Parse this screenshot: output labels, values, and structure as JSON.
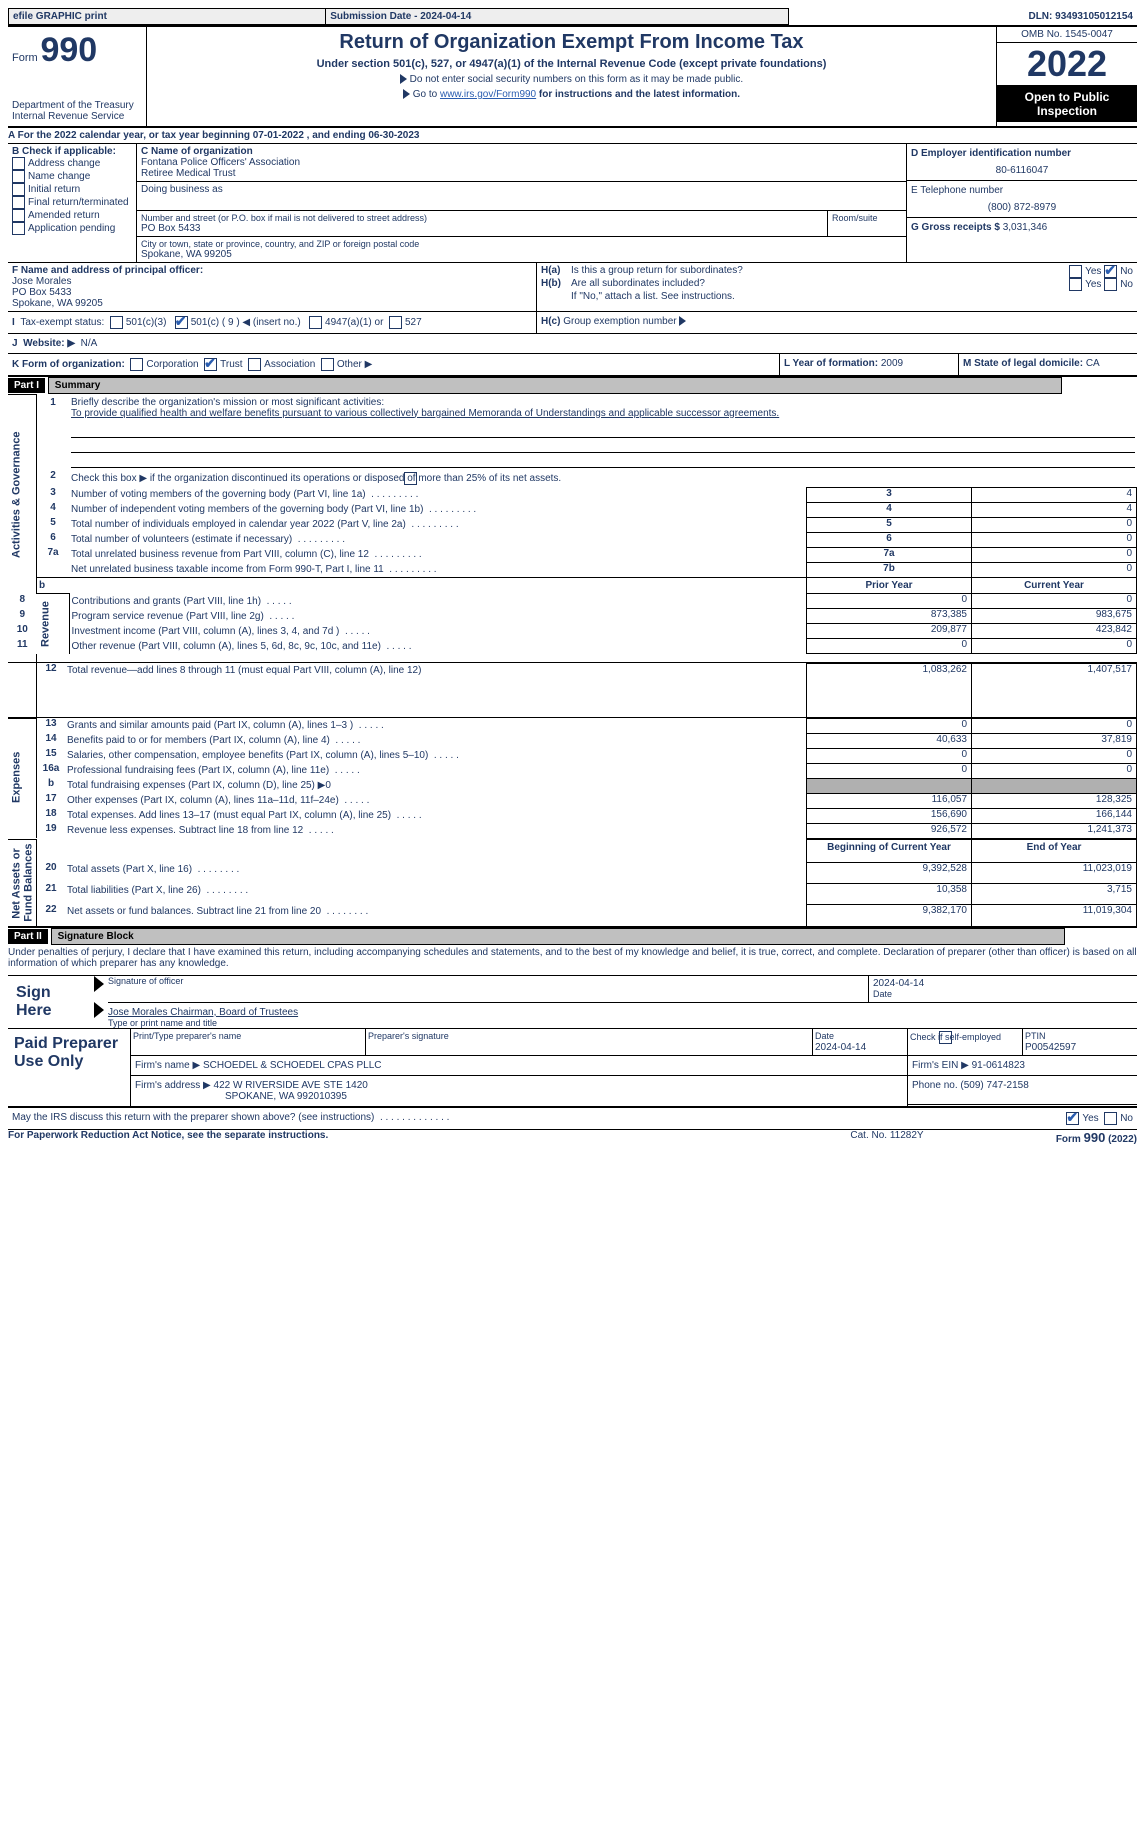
{
  "topbar": {
    "efile": "efile GRAPHIC print",
    "submission": "Submission Date - 2024-04-14",
    "dln": "DLN: 93493105012154"
  },
  "header": {
    "form_word": "Form",
    "form_num": "990",
    "title": "Return of Organization Exempt From Income Tax",
    "sub1": "Under section 501(c), 527, or 4947(a)(1) of the Internal Revenue Code (except private foundations)",
    "sub2": "Do not enter social security numbers on this form as it may be made public.",
    "sub3_a": "Go to ",
    "sub3_link": "www.irs.gov/Form990",
    "sub3_b": " for instructions and the latest information.",
    "dept": "Department of the Treasury\nInternal Revenue Service",
    "omb": "OMB No. 1545-0047",
    "year": "2022",
    "open": "Open to Public Inspection"
  },
  "lineA": {
    "prefix": "A For the 2022 calendar year, or tax year beginning ",
    "begin": "07-01-2022",
    "mid": " , and ending ",
    "end": "06-30-2023"
  },
  "boxB": {
    "title": "B Check if applicable:",
    "items": [
      "Address change",
      "Name change",
      "Initial return",
      "Final return/terminated",
      "Amended return",
      "Application pending"
    ]
  },
  "boxC": {
    "label_name": "C Name of organization",
    "org1": "Fontana Police Officers' Association",
    "org2": "Retiree Medical Trust",
    "dba_label": "Doing business as",
    "addr_label": "Number and street (or P.O. box if mail is not delivered to street address)",
    "room_label": "Room/suite",
    "addr": "PO Box 5433",
    "city_label": "City or town, state or province, country, and ZIP or foreign postal code",
    "city": "Spokane, WA  99205"
  },
  "boxD": {
    "label": "D Employer identification number",
    "value": "80-6116047"
  },
  "boxE": {
    "label": "E Telephone number",
    "value": "(800) 872-8979"
  },
  "boxG": {
    "label": "G Gross receipts $",
    "value": "3,031,346"
  },
  "boxF": {
    "label": "F  Name and address of principal officer:",
    "name": "Jose Morales",
    "addr": "PO Box 5433",
    "city": "Spokane, WA  99205"
  },
  "boxH": {
    "a": "Is this a group return for subordinates?",
    "b": "Are all subordinates included?",
    "note": "If \"No,\" attach a list. See instructions.",
    "c": "Group exemption number",
    "yes": "Yes",
    "no": "No"
  },
  "rowI": {
    "label": "Tax-exempt status:",
    "opts": [
      "501(c)(3)",
      "501(c) ( 9 ) ◀ (insert no.)",
      "4947(a)(1) or",
      "527"
    ]
  },
  "rowJ": {
    "label": "Website: ▶",
    "value": "N/A"
  },
  "rowK": {
    "label": "K Form of organization:",
    "opts": [
      "Corporation",
      "Trust",
      "Association",
      "Other ▶"
    ]
  },
  "rowL": {
    "label": "L Year of formation:",
    "value": "2009"
  },
  "rowM": {
    "label": "M State of legal domicile:",
    "value": "CA"
  },
  "partI": {
    "bar": "Part I",
    "title": "Summary"
  },
  "sum": {
    "q1a": "Briefly describe the organization's mission or most significant activities:",
    "q1b": "To provide qualified health and welfare benefits pursuant to various collectively bargained Memoranda of Understandings and applicable successor agreements.",
    "q2": "Check this box ▶        if the organization discontinued its operations or disposed of more than 25% of its net assets.",
    "rows": [
      {
        "n": "3",
        "t": "Number of voting members of the governing body (Part VI, line 1a)",
        "boxn": "3",
        "v": "4"
      },
      {
        "n": "4",
        "t": "Number of independent voting members of the governing body (Part VI, line 1b)",
        "boxn": "4",
        "v": "4"
      },
      {
        "n": "5",
        "t": "Total number of individuals employed in calendar year 2022 (Part V, line 2a)",
        "boxn": "5",
        "v": "0"
      },
      {
        "n": "6",
        "t": "Total number of volunteers (estimate if necessary)",
        "boxn": "6",
        "v": "0"
      },
      {
        "n": "7a",
        "t": "Total unrelated business revenue from Part VIII, column (C), line 12",
        "boxn": "7a",
        "v": "0"
      },
      {
        "n": "",
        "t": "Net unrelated business taxable income from Form 990-T, Part I, line 11",
        "boxn": "7b",
        "v": "0"
      }
    ],
    "hdr_prior": "Prior Year",
    "hdr_curr": "Current Year",
    "rev": [
      {
        "n": "8",
        "t": "Contributions and grants (Part VIII, line 1h)",
        "p": "0",
        "c": "0"
      },
      {
        "n": "9",
        "t": "Program service revenue (Part VIII, line 2g)",
        "p": "873,385",
        "c": "983,675"
      },
      {
        "n": "10",
        "t": "Investment income (Part VIII, column (A), lines 3, 4, and 7d )",
        "p": "209,877",
        "c": "423,842"
      },
      {
        "n": "11",
        "t": "Other revenue (Part VIII, column (A), lines 5, 6d, 8c, 9c, 10c, and 11e)",
        "p": "0",
        "c": "0"
      },
      {
        "n": "12",
        "t": "Total revenue—add lines 8 through 11 (must equal Part VIII, column (A), line 12)",
        "p": "1,083,262",
        "c": "1,407,517"
      }
    ],
    "exp": [
      {
        "n": "13",
        "t": "Grants and similar amounts paid (Part IX, column (A), lines 1–3 )",
        "p": "0",
        "c": "0"
      },
      {
        "n": "14",
        "t": "Benefits paid to or for members (Part IX, column (A), line 4)",
        "p": "40,633",
        "c": "37,819"
      },
      {
        "n": "15",
        "t": "Salaries, other compensation, employee benefits (Part IX, column (A), lines 5–10)",
        "p": "0",
        "c": "0"
      },
      {
        "n": "16a",
        "t": "Professional fundraising fees (Part IX, column (A), line 11e)",
        "p": "0",
        "c": "0"
      },
      {
        "n": "b",
        "t": "Total fundraising expenses (Part IX, column (D), line 25) ▶0",
        "p": "",
        "c": "",
        "shade": true
      },
      {
        "n": "17",
        "t": "Other expenses (Part IX, column (A), lines 11a–11d, 11f–24e)",
        "p": "116,057",
        "c": "128,325"
      },
      {
        "n": "18",
        "t": "Total expenses. Add lines 13–17 (must equal Part IX, column (A), line 25)",
        "p": "156,690",
        "c": "166,144"
      },
      {
        "n": "19",
        "t": "Revenue less expenses. Subtract line 18 from line 12",
        "p": "926,572",
        "c": "1,241,373"
      }
    ],
    "hdr_beg": "Beginning of Current Year",
    "hdr_end": "End of Year",
    "net": [
      {
        "n": "20",
        "t": "Total assets (Part X, line 16)",
        "p": "9,392,528",
        "c": "11,023,019"
      },
      {
        "n": "21",
        "t": "Total liabilities (Part X, line 26)",
        "p": "10,358",
        "c": "3,715"
      },
      {
        "n": "22",
        "t": "Net assets or fund balances. Subtract line 21 from line 20",
        "p": "9,382,170",
        "c": "11,019,304"
      }
    ],
    "vlabels": {
      "a": "Activities & Governance",
      "r": "Revenue",
      "e": "Expenses",
      "n": "Net Assets or\nFund Balances"
    },
    "b_label": "b"
  },
  "partII": {
    "bar": "Part II",
    "title": "Signature Block",
    "decl": "Under penalties of perjury, I declare that I have examined this return, including accompanying schedules and statements, and to the best of my knowledge and belief, it is true, correct, and complete. Declaration of preparer (other than officer) is based on all information of which preparer has any knowledge."
  },
  "sign": {
    "here": "Sign Here",
    "sig_label": "Signature of officer",
    "date_label": "Date",
    "date": "2024-04-14",
    "printed": "Jose Morales  Chairman, Board of Trustees",
    "printed_label": "Type or print name and title"
  },
  "paid": {
    "title": "Paid Preparer Use Only",
    "c": {
      "name": "Print/Type preparer's name",
      "sig": "Preparer's signature",
      "date_l": "Date",
      "date": "2024-04-14",
      "check": "Check         if self-employed",
      "ptin_l": "PTIN",
      "ptin": "P00542597",
      "firm_l": "Firm's name   ▶",
      "firm": "SCHOEDEL & SCHOEDEL CPAS PLLC",
      "ein_l": "Firm's EIN ▶",
      "ein": "91-0614823",
      "addr_l": "Firm's address ▶",
      "addr1": "422 W RIVERSIDE AVE STE 1420",
      "addr2": "SPOKANE, WA  992010395",
      "phone_l": "Phone no.",
      "phone": "(509) 747-2158"
    }
  },
  "footer": {
    "q": "May the IRS discuss this return with the preparer shown above? (see instructions)",
    "yes": "Yes",
    "no": "No",
    "pra": "For Paperwork Reduction Act Notice, see the separate instructions.",
    "cat": "Cat. No. 11282Y",
    "form": "Form 990 (2022)"
  }
}
